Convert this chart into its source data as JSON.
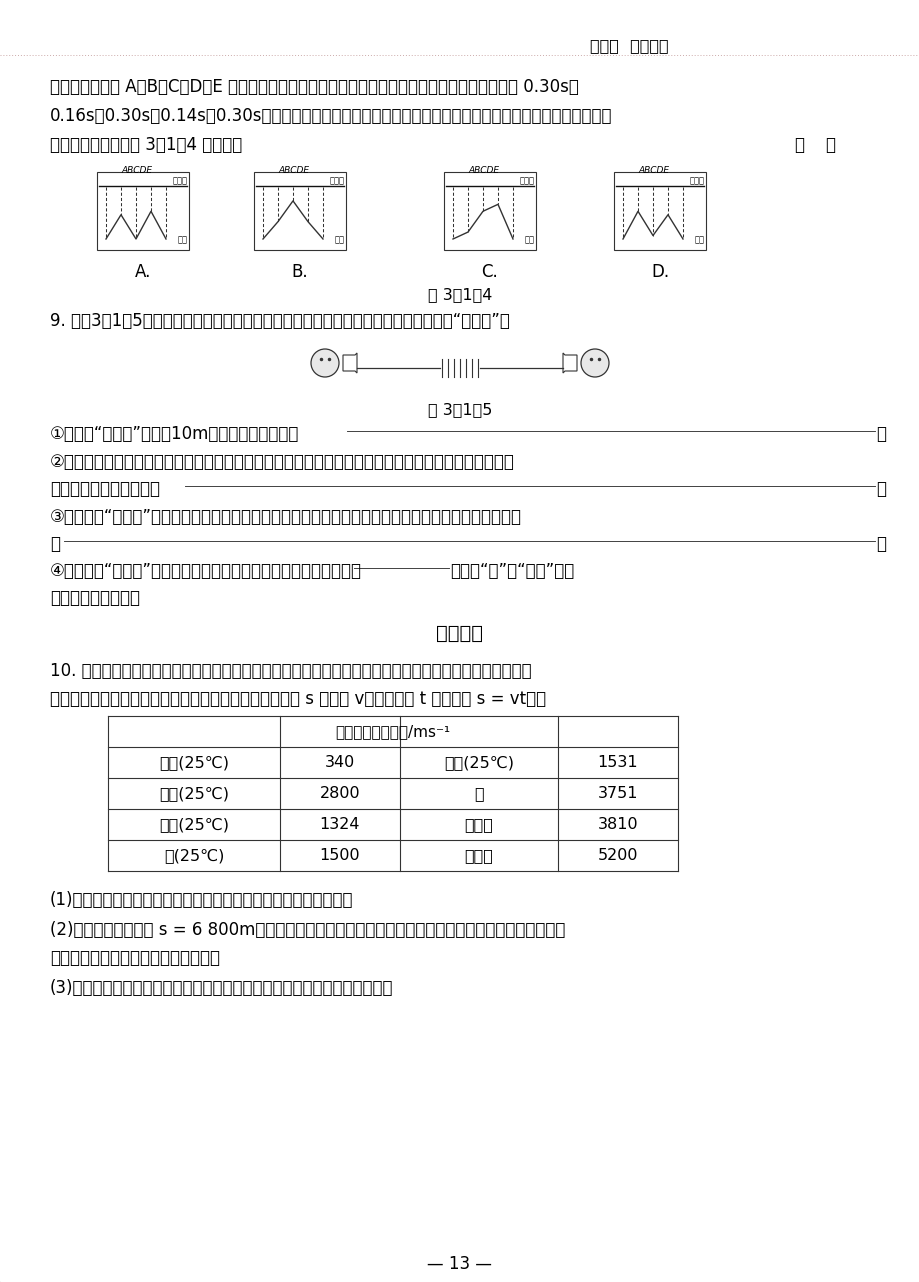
{
  "header_text": "第三章  声的世界",
  "bg_color": "#ffffff",
  "text_color": "#000000",
  "page_number": "— 13 —",
  "section_title": "发散思维",
  "q8_text1": "水平面等间距的 A、B、C、D、E 五个位置时，向海底定向发射超声波，测得回收信号的时间分别为 0.30s、",
  "q8_text2": "0.16s、0.30s、0.14s、0.30s，根据时间，求出海底与海平面的距离，就可以绘出海底的大致形状，则该海域",
  "q8_text3": "海底的大致形状如图 3－1－4 所示中的",
  "q8_bracket": "（    ）",
  "fig314_label": "图 3－1－4",
  "fig315_label": "图 3－1－5",
  "q9_text": "9. 如图3－1－5所示，小明与小刘选用以上琴弦和盛可乐饮料的两个纸杯，制成了一个“土电话”。",
  "q9_1": "①他们用“土电话”能实现10m间的通话，这表明：",
  "q9_2": "②相距同样远，讲话者以同样的响度说话，如果用细铜金属丝连接，则比尼龙琴弦连接时听到的声音要大",
  "q9_2b": "些，这一实验现象表明：",
  "q9_3": "③如果在用“土电话”时，另外一个同学用手握住琴弦上的某一部分，则听的另一方就不能听到了，这是由",
  "q9_3b": "于",
  "q9_4": "④如果在用“土电话”时，琴弦没有拉直而处于很松弛状态，则另一方",
  "q9_4b": "（选填“能”或“不能”）听",
  "q9_4c": "到对方的讲话声音。",
  "q10_intro1": "10. 在长水管的一端敏击一下，在另一端常常能三次听到敏击声，请依据你的生活经验和下表提供的声音在",
  "q10_intro2": "一些物质中的传播速度，解答下列问题（声音传播的距离 s 与声速 v、传播时间 t 的关系为 s = vt）。",
  "table_header": "一些物质中的声速/ms⁻¹",
  "table_data": [
    [
      "空气(25℃)",
      "340",
      "海水(25℃)",
      "1531"
    ],
    [
      "玻璃(25℃)",
      "2800",
      "铜",
      "3751"
    ],
    [
      "煤油(25℃)",
      "1324",
      "大理石",
      "3810"
    ],
    [
      "水(25℃)",
      "1500",
      "铁、钟",
      "5200"
    ]
  ],
  "q10_1": "(1)在长水管的一端敏击一下，在另一端为什么能听到三次敏击声？",
  "q10_2": "(2)如果水管的长度为 s = 6 800m，当在水管的一端敏击后，声音从铁管中传到另一端需要多少时间？声",
  "q10_2b": "音从空气中传到另一端需要多少时间？",
  "q10_3": "(3)在水管的另一端第一次听到的声音与第三次听到的声音的时间差是多少？"
}
